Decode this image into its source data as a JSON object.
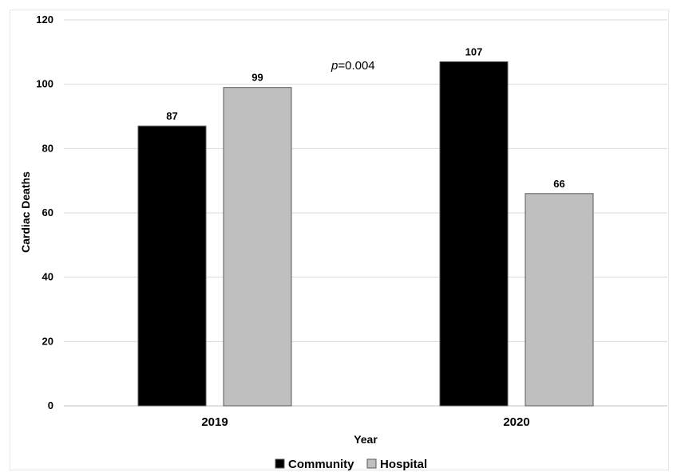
{
  "chart_data": {
    "type": "bar",
    "categories": [
      "2019",
      "2020"
    ],
    "series": [
      {
        "name": "Community",
        "values": [
          87,
          107
        ],
        "color": "#000000"
      },
      {
        "name": "Hospital",
        "values": [
          99,
          66
        ],
        "color": "#bfbfbf"
      }
    ],
    "xlabel": "Year",
    "ylabel": "Cardiac Deaths",
    "ylim": [
      0,
      120
    ],
    "yticks": [
      0,
      20,
      40,
      60,
      80,
      100,
      120
    ],
    "grid": true,
    "legend": "bottom",
    "annotation": {
      "italic": "p",
      "rest": "=0.004"
    }
  }
}
